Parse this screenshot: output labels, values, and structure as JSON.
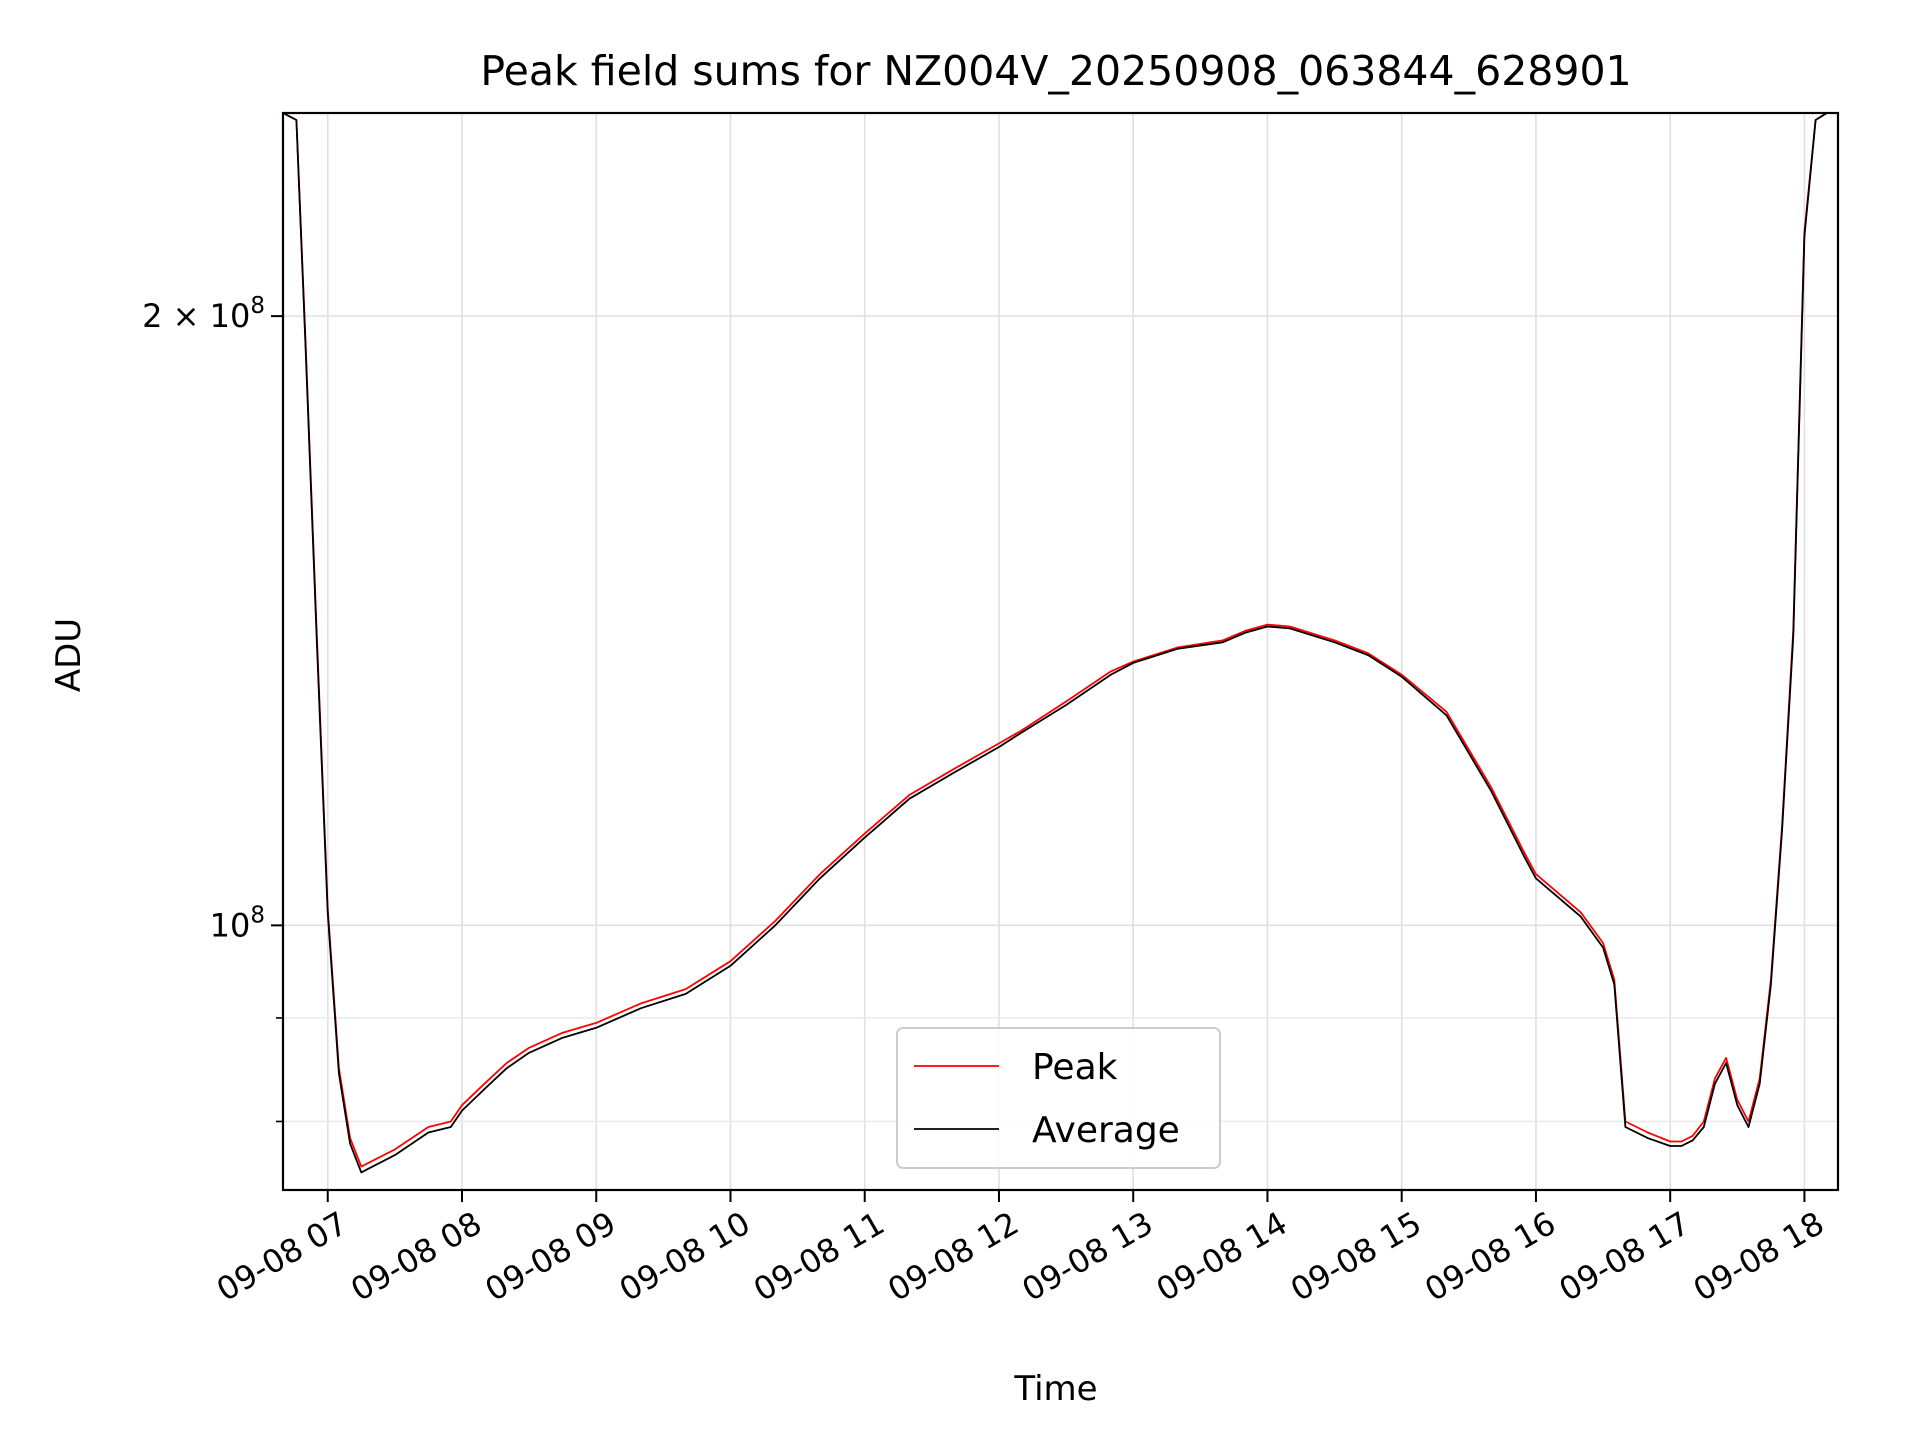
{
  "chart_data": {
    "type": "line",
    "title": "Peak field sums for NZ004V_20250908_063844_628901",
    "xlabel": "Time",
    "ylabel": "ADU",
    "yscale": "log",
    "ylim": [
      74000000,
      252000000
    ],
    "xlim": [
      "09-08 06:40",
      "09-08 18:15"
    ],
    "grid": true,
    "legend_position": "lower-center",
    "x_ticks": [
      "09-08 07",
      "09-08 08",
      "09-08 09",
      "09-08 10",
      "09-08 11",
      "09-08 12",
      "09-08 13",
      "09-08 14",
      "09-08 15",
      "09-08 16",
      "09-08 17",
      "09-08 18"
    ],
    "y_ticks": [
      {
        "value": 100000000,
        "label": "10",
        "exp": "8"
      },
      {
        "value": 200000000,
        "label": "2 × 10",
        "exp": "8"
      }
    ],
    "x": [
      "09-08 06:40",
      "09-08 06:46",
      "09-08 06:50",
      "09-08 06:55",
      "09-08 07:00",
      "09-08 07:05",
      "09-08 07:10",
      "09-08 07:15",
      "09-08 07:20",
      "09-08 07:30",
      "09-08 07:45",
      "09-08 07:55",
      "09-08 08:00",
      "09-08 08:10",
      "09-08 08:20",
      "09-08 08:30",
      "09-08 08:45",
      "09-08 09:00",
      "09-08 09:20",
      "09-08 09:40",
      "09-08 10:00",
      "09-08 10:20",
      "09-08 10:40",
      "09-08 11:00",
      "09-08 11:20",
      "09-08 11:40",
      "09-08 12:00",
      "09-08 12:10",
      "09-08 12:30",
      "09-08 12:50",
      "09-08 13:00",
      "09-08 13:20",
      "09-08 13:40",
      "09-08 13:50",
      "09-08 14:00",
      "09-08 14:10",
      "09-08 14:30",
      "09-08 14:45",
      "09-08 15:00",
      "09-08 15:20",
      "09-08 15:40",
      "09-08 15:55",
      "09-08 16:00",
      "09-08 16:20",
      "09-08 16:30",
      "09-08 16:35",
      "09-08 16:40",
      "09-08 16:50",
      "09-08 17:00",
      "09-08 17:05",
      "09-08 17:10",
      "09-08 17:15",
      "09-08 17:20",
      "09-08 17:25",
      "09-08 17:30",
      "09-08 17:35",
      "09-08 17:40",
      "09-08 17:45",
      "09-08 17:50",
      "09-08 17:55",
      "09-08 18:00",
      "09-08 18:05",
      "09-08 18:10",
      "09-08 18:15"
    ],
    "series": [
      {
        "name": "Peak",
        "color": "#ff0000",
        "values": [
          252000000,
          250000000,
          195000000,
          140000000,
          102000000,
          85000000,
          78500000,
          76000000,
          76500000,
          77500000,
          79500000,
          80000000,
          81500000,
          83500000,
          85500000,
          87000000,
          88500000,
          89500000,
          91500000,
          93000000,
          96000000,
          100500000,
          106000000,
          111000000,
          116000000,
          119500000,
          123000000,
          124800000,
          129000000,
          133500000,
          135000000,
          137200000,
          138300000,
          139800000,
          140800000,
          140500000,
          138300000,
          136300000,
          133000000,
          127500000,
          117000000,
          108500000,
          106000000,
          101500000,
          98000000,
          94000000,
          80000000,
          79000000,
          78200000,
          78200000,
          78700000,
          80000000,
          84000000,
          86000000,
          82000000,
          80000000,
          84000000,
          94000000,
          112000000,
          140000000,
          220000000,
          250000000,
          252000000,
          252000000
        ]
      },
      {
        "name": "Average",
        "color": "#000000",
        "values": [
          252000000,
          250000000,
          194000000,
          139000000,
          101500000,
          84500000,
          78000000,
          75500000,
          76000000,
          77000000,
          79000000,
          79500000,
          81000000,
          83000000,
          85000000,
          86500000,
          88000000,
          89000000,
          91000000,
          92500000,
          95500000,
          100000000,
          105500000,
          110500000,
          115500000,
          119000000,
          122500000,
          124500000,
          128500000,
          133000000,
          134800000,
          137000000,
          138000000,
          139500000,
          140500000,
          140200000,
          138000000,
          136000000,
          132700000,
          127000000,
          116500000,
          108000000,
          105500000,
          101000000,
          97500000,
          93500000,
          79500000,
          78500000,
          77800000,
          77800000,
          78300000,
          79500000,
          83500000,
          85500000,
          81500000,
          79500000,
          83500000,
          93500000,
          111500000,
          139000000,
          219000000,
          250000000,
          252000000,
          252000000
        ]
      }
    ]
  }
}
